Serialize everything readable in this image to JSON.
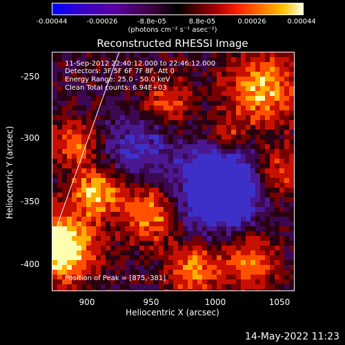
{
  "colorbar": {
    "ticks": [
      "-0.00044",
      "-0.00026",
      "-8.8e-05",
      "8.8e-05",
      "0.00026",
      "0.00044"
    ],
    "units": "(photons cm⁻² s⁻¹ asec⁻²)"
  },
  "title": "Reconstructed RHESSI Image",
  "annotations": {
    "time": "11-Sep-2012 22:40:12.000 to 22:46:12.000",
    "detectors": "Detectors: 3F 5F 6F 7F 8F, Att 0",
    "energy": "Energy Range: 25.0 - 50.0 keV",
    "clean": "Clean     Total counts: 6.94E+03",
    "peak": "Position of Peak = [875,-381]"
  },
  "x_axis": {
    "label": "Heliocentric X (arcsec)",
    "ticks": [
      "900",
      "950",
      "1000",
      "1050"
    ]
  },
  "y_axis": {
    "label": "Heliocentric Y (arcsec)",
    "ticks": [
      "-250",
      "-300",
      "-350",
      "-400"
    ]
  },
  "footer": {
    "date": "14-May-2022 11:23"
  },
  "colors": {
    "background": "#000000",
    "text": "#ffffff"
  }
}
